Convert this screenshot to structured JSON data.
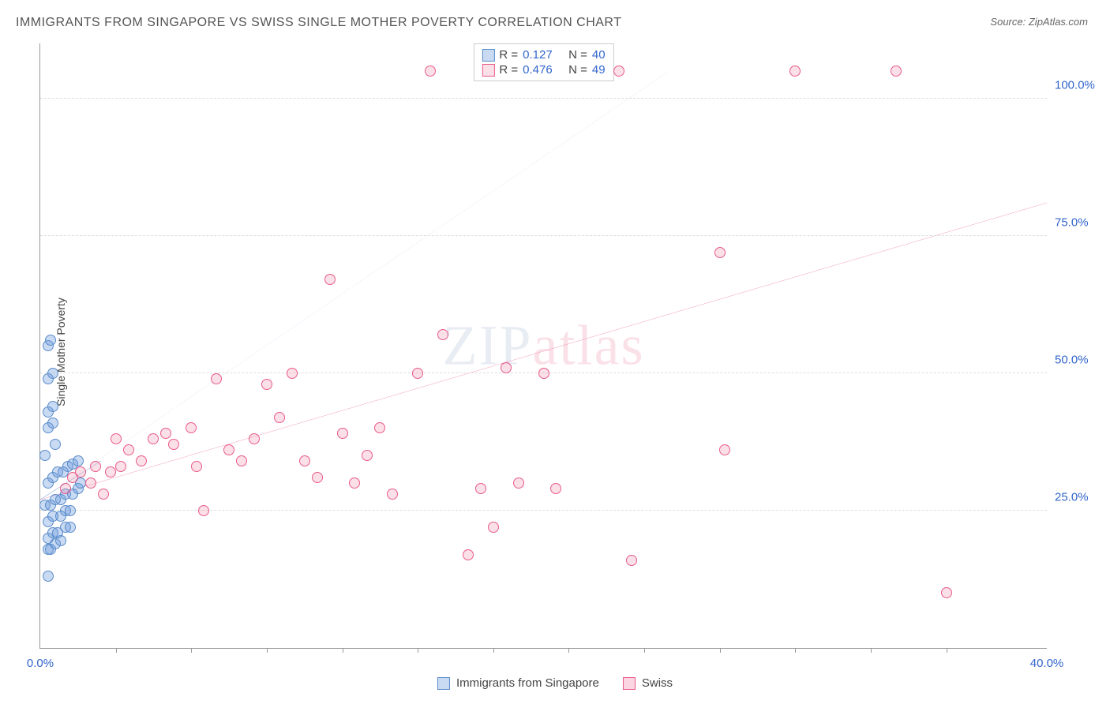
{
  "title": "IMMIGRANTS FROM SINGAPORE VS SWISS SINGLE MOTHER POVERTY CORRELATION CHART",
  "source_label": "Source:",
  "source_name": "ZipAtlas.com",
  "y_axis_label": "Single Mother Poverty",
  "watermark_zip": "ZIP",
  "watermark_atlas": "atlas",
  "chart": {
    "type": "scatter",
    "xlim": [
      0,
      40
    ],
    "ylim": [
      0,
      110
    ],
    "x_ticks": [
      0,
      40
    ],
    "x_tick_labels": [
      "0.0%",
      "40.0%"
    ],
    "x_minor_ticks": [
      3,
      6,
      9,
      12,
      15,
      18,
      21,
      24,
      27,
      30,
      33,
      36
    ],
    "y_ticks": [
      25,
      50,
      75,
      100
    ],
    "y_tick_labels": [
      "25.0%",
      "50.0%",
      "75.0%",
      "100.0%"
    ],
    "grid_color": "#dddddd",
    "background_color": "#ffffff",
    "series": [
      {
        "name": "Immigrants from Singapore",
        "color_fill": "rgba(100,150,220,0.35)",
        "color_stroke": "#5a8cc9",
        "R": "0.127",
        "N": "40",
        "trend": {
          "x1": 0,
          "y1": 27,
          "x2": 25,
          "y2": 105,
          "style": "dashed",
          "color": "#7aa3d6",
          "width": 1.5
        },
        "solid_segment": {
          "x1": 0,
          "y1": 27,
          "x2": 2.4,
          "y2": 34,
          "color": "#3b6fb5",
          "width": 3
        },
        "points": [
          [
            0.3,
            13
          ],
          [
            0.3,
            18
          ],
          [
            0.4,
            18
          ],
          [
            0.6,
            19
          ],
          [
            0.8,
            19.5
          ],
          [
            0.3,
            20
          ],
          [
            0.5,
            21
          ],
          [
            0.7,
            21
          ],
          [
            1.0,
            22
          ],
          [
            1.2,
            22
          ],
          [
            0.3,
            23
          ],
          [
            0.5,
            24
          ],
          [
            0.8,
            24
          ],
          [
            1.0,
            25
          ],
          [
            1.2,
            25
          ],
          [
            0.2,
            26
          ],
          [
            0.4,
            26
          ],
          [
            0.6,
            27
          ],
          [
            0.8,
            27
          ],
          [
            1.0,
            28
          ],
          [
            1.3,
            28
          ],
          [
            1.5,
            29
          ],
          [
            1.6,
            30
          ],
          [
            0.3,
            30
          ],
          [
            0.5,
            31
          ],
          [
            0.7,
            32
          ],
          [
            0.9,
            32
          ],
          [
            1.1,
            33
          ],
          [
            1.3,
            33.5
          ],
          [
            1.5,
            34
          ],
          [
            0.2,
            35
          ],
          [
            0.6,
            37
          ],
          [
            0.3,
            40
          ],
          [
            0.5,
            41
          ],
          [
            0.3,
            43
          ],
          [
            0.5,
            44
          ],
          [
            0.3,
            49
          ],
          [
            0.5,
            50
          ],
          [
            0.3,
            55
          ],
          [
            0.4,
            56
          ]
        ]
      },
      {
        "name": "Swiss",
        "color_fill": "rgba(240,130,160,0.25)",
        "color_stroke": "#e85a8c",
        "R": "0.476",
        "N": "49",
        "trend": {
          "x1": 0,
          "y1": 27,
          "x2": 40,
          "y2": 81,
          "style": "solid",
          "color": "#e85a8c",
          "width": 2.5
        },
        "points": [
          [
            1.0,
            29
          ],
          [
            1.3,
            31
          ],
          [
            1.6,
            32
          ],
          [
            2.0,
            30
          ],
          [
            2.2,
            33
          ],
          [
            2.5,
            28
          ],
          [
            2.8,
            32
          ],
          [
            3.0,
            38
          ],
          [
            3.2,
            33
          ],
          [
            3.5,
            36
          ],
          [
            4.0,
            34
          ],
          [
            4.5,
            38
          ],
          [
            5.0,
            39
          ],
          [
            5.3,
            37
          ],
          [
            6.0,
            40
          ],
          [
            6.2,
            33
          ],
          [
            6.5,
            25
          ],
          [
            7.0,
            49
          ],
          [
            7.5,
            36
          ],
          [
            8.0,
            34
          ],
          [
            8.5,
            38
          ],
          [
            9.0,
            48
          ],
          [
            9.5,
            42
          ],
          [
            10.0,
            50
          ],
          [
            10.5,
            34
          ],
          [
            11.0,
            31
          ],
          [
            11.5,
            67
          ],
          [
            12.0,
            39
          ],
          [
            12.5,
            30
          ],
          [
            13.0,
            35
          ],
          [
            13.5,
            40
          ],
          [
            14.0,
            28
          ],
          [
            15.0,
            50
          ],
          [
            15.5,
            105
          ],
          [
            16.0,
            57
          ],
          [
            17.0,
            17
          ],
          [
            17.5,
            29
          ],
          [
            18.0,
            22
          ],
          [
            18.5,
            51
          ],
          [
            19.0,
            30
          ],
          [
            20.0,
            50
          ],
          [
            20.5,
            29
          ],
          [
            23.5,
            16
          ],
          [
            23.0,
            105
          ],
          [
            27.0,
            72
          ],
          [
            27.2,
            36
          ],
          [
            30.0,
            105
          ],
          [
            34.0,
            105
          ],
          [
            36.0,
            10
          ]
        ]
      }
    ]
  },
  "legend_top": {
    "R_label": "R =",
    "N_label": "N ="
  },
  "legend_bottom": [
    {
      "label": "Immigrants from Singapore",
      "fill": "rgba(120,165,225,0.4)",
      "stroke": "#5a8cc9"
    },
    {
      "label": "Swiss",
      "fill": "rgba(245,150,180,0.4)",
      "stroke": "#e85a8c"
    }
  ]
}
